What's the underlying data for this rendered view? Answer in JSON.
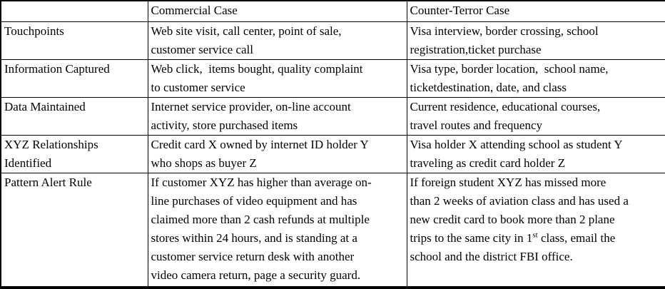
{
  "table": {
    "columns": [
      {
        "label": ""
      },
      {
        "label": "Commercial Case"
      },
      {
        "label": "Counter-Terror Case"
      }
    ],
    "rows": [
      {
        "label": "Touchpoints",
        "commercial": "Web site visit, call center, point of sale,\ncustomer service call",
        "counter_terror": "Visa interview, border crossing, school\nregistration,ticket purchase"
      },
      {
        "label": "Information Captured",
        "commercial": "Web click,  items bought, quality complaint\nto customer service",
        "counter_terror": "Visa type, border location,  school name,\nticketdestination, date, and class"
      },
      {
        "label": "Data Maintained",
        "commercial": "Internet service provider, on-line account\nactivity, store purchased items",
        "counter_terror": "Current residence, educational courses,\ntravel routes and frequency"
      },
      {
        "label": "XYZ Relationships\nIdentified",
        "commercial": "Credit card X owned by internet ID holder Y\nwho shops as buyer Z",
        "counter_terror": "Visa holder X attending school as student Y\ntraveling as credit card holder Z"
      },
      {
        "label": "Pattern Alert Rule",
        "commercial": "If customer XYZ has higher than average on-\nline purchases of video equipment and has\nclaimed more than 2 cash refunds at multiple\nstores within 24 hours, and is standing at a\ncustomer service return desk with another\nvideo camera return, page a security guard.",
        "counter_terror_before_sup": "If foreign student XYZ has missed more\nthan 2 weeks of aviation class and has used a\nnew credit card to book more than 2 plane\ntrips to the same city in 1",
        "counter_terror_sup": "st",
        "counter_terror_after_sup": " class, email the\nschool and the district FBI office."
      }
    ],
    "colors": {
      "border": "#000000",
      "text": "#000000",
      "background": "#ffffff"
    }
  }
}
